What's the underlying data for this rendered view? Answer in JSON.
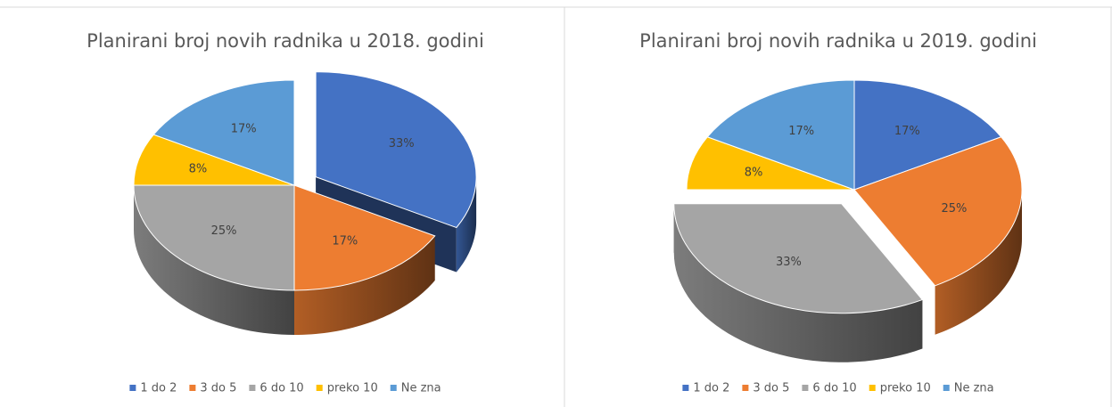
{
  "chart_data": [
    {
      "type": "pie",
      "title": "Planirani broj novih radnika u 2018. godini",
      "categories": [
        "1 do 2",
        "3 do 5",
        "6 do 10",
        "preko 10",
        "Ne zna"
      ],
      "values": [
        33,
        17,
        25,
        8,
        17
      ],
      "value_labels": [
        "33%",
        "17%",
        "25%",
        "8%",
        "17%"
      ],
      "colors": [
        "#4472c4",
        "#ed7d31",
        "#a5a5a5",
        "#ffc000",
        "#5b9bd5"
      ],
      "explode": 0,
      "legend": "bottom"
    },
    {
      "type": "pie",
      "title": "Planirani broj novih radnika u 2019. godini",
      "categories": [
        "1 do 2",
        "3 do 5",
        "6 do 10",
        "preko 10",
        "Ne zna"
      ],
      "values": [
        17,
        25,
        33,
        8,
        17
      ],
      "value_labels": [
        "17%",
        "25%",
        "33%",
        "8%",
        "17%"
      ],
      "colors": [
        "#4472c4",
        "#ed7d31",
        "#a5a5a5",
        "#ffc000",
        "#5b9bd5"
      ],
      "explode": 2,
      "legend": "bottom"
    }
  ]
}
